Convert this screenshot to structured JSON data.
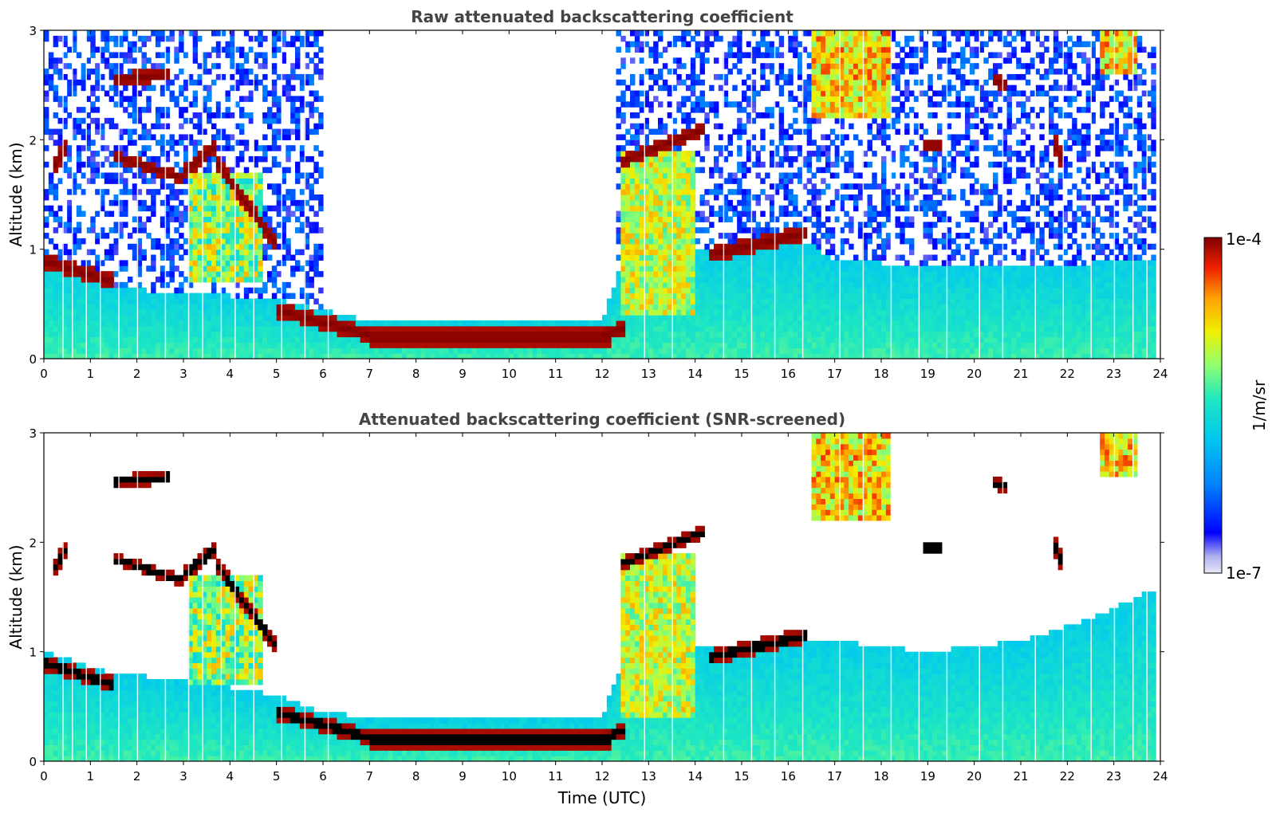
{
  "chart_data": [
    {
      "type": "heatmap",
      "title": "Raw attenuated backscattering coefficient",
      "xlabel": "",
      "ylabel": "Altitude (km)",
      "xlim": [
        0,
        24
      ],
      "ylim": [
        0,
        3
      ],
      "xticks": [
        "0",
        "1",
        "2",
        "3",
        "4",
        "5",
        "6",
        "7",
        "8",
        "9",
        "10",
        "11",
        "12",
        "13",
        "14",
        "15",
        "16",
        "17",
        "18",
        "19",
        "20",
        "21",
        "22",
        "23",
        "24"
      ],
      "yticks": [
        "0",
        "1",
        "2",
        "3"
      ],
      "screened": false,
      "features": [
        {
          "name": "aerosol-boundary-layer",
          "t": [
            0,
            23.9
          ],
          "alt_top_km": [
            0.9,
            0.6,
            0.55,
            0.45,
            0.4,
            0.35,
            0.3,
            0.35,
            1.0,
            1.1,
            1.0,
            0.9
          ]
        },
        {
          "name": "low-stratus-layer",
          "t": [
            5.0,
            12.5
          ],
          "alt_km": [
            0.45,
            0.2
          ]
        },
        {
          "name": "low-cloud-early",
          "t": [
            0.0,
            1.5
          ],
          "alt_km": [
            0.9,
            0.7
          ]
        },
        {
          "name": "descending-cloud-layer",
          "t": [
            1.5,
            5.0
          ],
          "alt_km": [
            1.85,
            1.0
          ]
        },
        {
          "name": "mid-cloud-afternoon",
          "t": [
            12.4,
            14.2
          ],
          "alt_km": [
            1.8,
            2.1
          ]
        },
        {
          "name": "cloud-deck",
          "t": [
            14.3,
            16.4
          ],
          "alt_km": [
            0.95,
            1.2
          ]
        },
        {
          "name": "high-clouds",
          "t": [
            16.5,
            23.9
          ],
          "alt_km": [
            2.6,
            3.0
          ]
        }
      ]
    },
    {
      "type": "heatmap",
      "title": "Attenuated backscattering coefficient (SNR-screened)",
      "xlabel": "Time (UTC)",
      "ylabel": "Altitude (km)",
      "xlim": [
        0,
        24
      ],
      "ylim": [
        0,
        3
      ],
      "xticks": [
        "0",
        "1",
        "2",
        "3",
        "4",
        "5",
        "6",
        "7",
        "8",
        "9",
        "10",
        "11",
        "12",
        "13",
        "14",
        "15",
        "16",
        "17",
        "18",
        "19",
        "20",
        "21",
        "22",
        "23",
        "24"
      ],
      "yticks": [
        "0",
        "1",
        "2",
        "3"
      ],
      "screened": true,
      "features": [
        {
          "name": "aerosol-boundary-layer",
          "t": [
            0,
            23.9
          ],
          "alt_top_km": [
            0.9,
            0.8,
            0.75,
            0.6,
            0.45,
            0.4,
            0.35,
            0.4,
            1.0,
            1.2,
            1.1,
            1.6
          ]
        },
        {
          "name": "low-stratus-layer",
          "t": [
            5.0,
            12.5
          ],
          "alt_km": [
            0.45,
            0.2
          ]
        },
        {
          "name": "descending-cloud-layer",
          "t": [
            1.5,
            5.0
          ],
          "alt_km": [
            1.85,
            1.0
          ]
        },
        {
          "name": "mid-cloud-afternoon",
          "t": [
            12.4,
            14.2
          ],
          "alt_km": [
            1.8,
            2.1
          ]
        },
        {
          "name": "cloud-deck",
          "t": [
            14.3,
            16.4
          ],
          "alt_km": [
            0.95,
            1.2
          ]
        },
        {
          "name": "high-clouds",
          "t": [
            16.5,
            23.9
          ],
          "alt_km": [
            2.6,
            3.0
          ]
        }
      ]
    }
  ],
  "colorbar": {
    "max_label": "1e-4",
    "min_label": "1e-7",
    "unit_label": "1/m/sr",
    "colormap": [
      "#e8e8f8",
      "#c0c0f0",
      "#0000ff",
      "#0080ff",
      "#00c0f0",
      "#20e0d0",
      "#80ff80",
      "#e0f000",
      "#ffc000",
      "#ff6000",
      "#e00000",
      "#800000"
    ]
  }
}
